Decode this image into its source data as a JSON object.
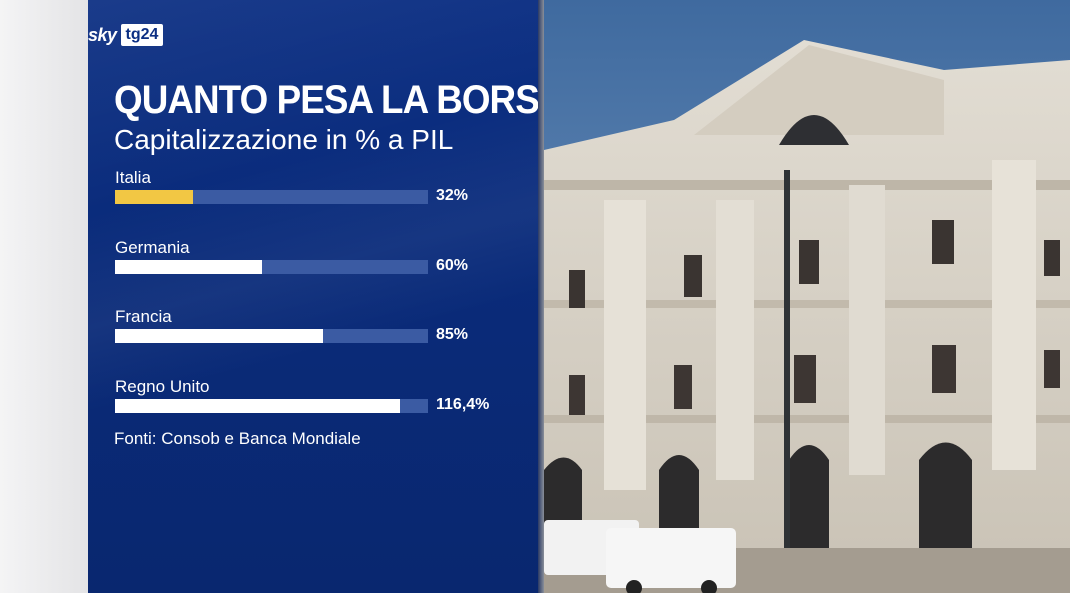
{
  "logo": {
    "brand": "sky",
    "channel": "tg24"
  },
  "chart_data": {
    "type": "bar",
    "orientation": "horizontal",
    "title": "QUANTO PESA LA BORSA",
    "subtitle": "Capitalizzazione in % a PIL",
    "categories": [
      "Italia",
      "Germania",
      "Francia",
      "Regno Unito"
    ],
    "values": [
      32,
      60,
      85,
      116.4
    ],
    "value_labels": [
      "32%",
      "60%",
      "85%",
      "116,4%"
    ],
    "xlim": [
      0,
      128
    ],
    "colors": [
      "#f2c744",
      "#ffffff",
      "#ffffff",
      "#ffffff"
    ],
    "track_color": "#3b5ba3",
    "source": "Fonti: Consob e Banca Mondiale"
  },
  "photo": {
    "subject": "building-facade"
  },
  "colors": {
    "panel": "#0c2f83",
    "sky": "#4f79aa",
    "stone": "#d8d2c6"
  }
}
